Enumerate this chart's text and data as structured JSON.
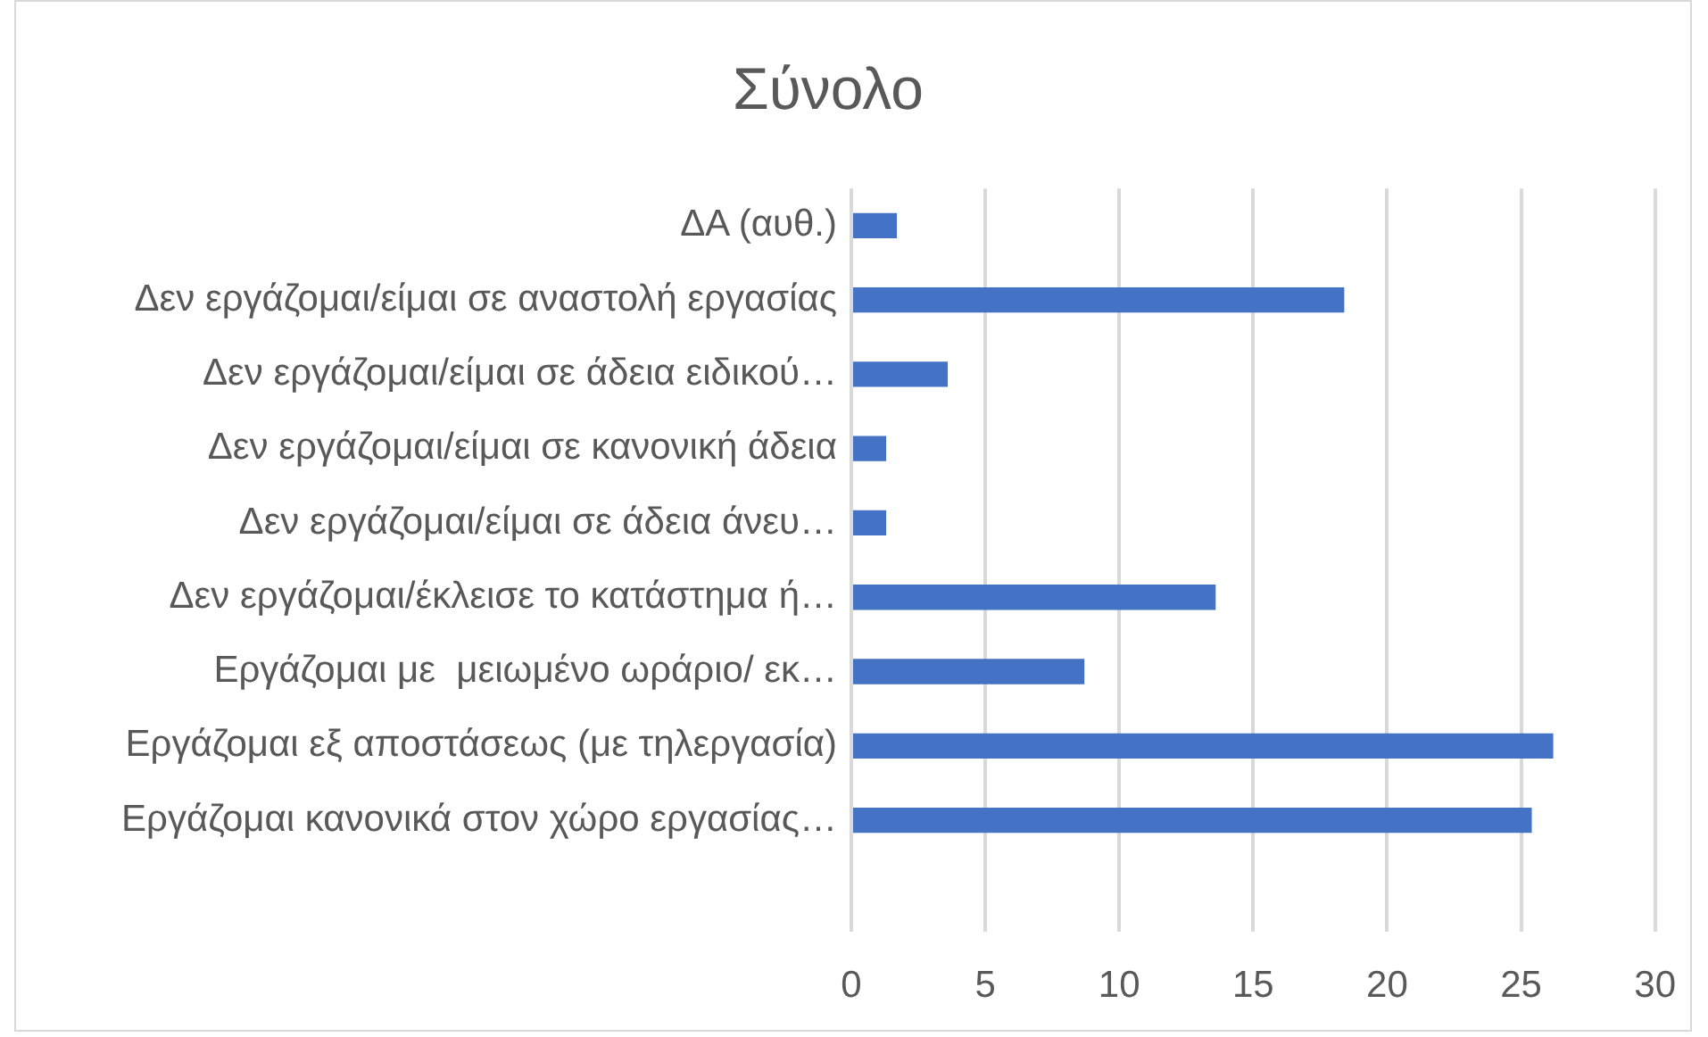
{
  "chart_data": {
    "type": "bar",
    "orientation": "horizontal",
    "title": "Σύνολο",
    "categories": [
      "ΔΑ (αυθ.)",
      "Δεν εργάζομαι/είμαι σε αναστολή εργασίας",
      "Δεν εργάζομαι/είμαι σε άδεια ειδικού…",
      "Δεν εργάζομαι/είμαι σε κανονική άδεια",
      "Δεν εργάζομαι/είμαι σε άδεια άνευ…",
      "Δεν εργάζομαι/έκλεισε το κατάστημα ή…",
      "Εργάζομαι με  μειωμένο ωράριο/ εκ…",
      "Εργάζομαι εξ αποστάσεως (με τηλεργασία)",
      "Εργάζομαι κανονικά στον χώρο εργασίας…",
      null
    ],
    "values": [
      1.7,
      18.4,
      3.6,
      1.3,
      1.3,
      13.6,
      8.7,
      26.2,
      25.4,
      null
    ],
    "color": "#4472c4",
    "xlim": [
      0,
      30
    ],
    "xticks": [
      0,
      5,
      10,
      15,
      20,
      25,
      30
    ],
    "grid": "x"
  }
}
